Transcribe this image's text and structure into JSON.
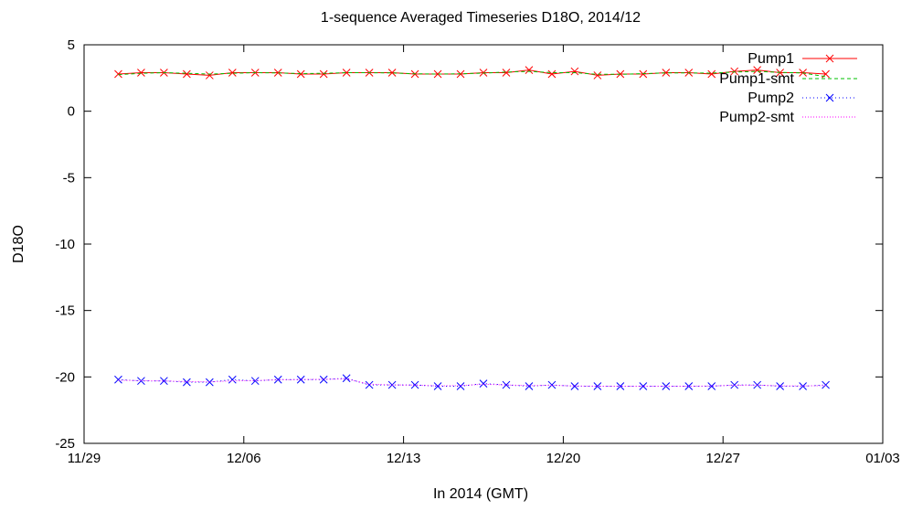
{
  "chart_data": {
    "type": "line",
    "title": "1-sequence Averaged Timeseries D18O, 2014/12",
    "xlabel": "In 2014 (GMT)",
    "ylabel": "D18O",
    "ylim": [
      -25,
      5
    ],
    "yticks": [
      5,
      0,
      -5,
      -10,
      -15,
      -20,
      -25
    ],
    "x_tick_labels": [
      "11/29",
      "12/06",
      "12/13",
      "12/20",
      "12/27",
      "01/03"
    ],
    "xlim": [
      "2014-11-29",
      "2015-01-03"
    ],
    "grid": false,
    "legend_position": "top-right",
    "x_dates": [
      "2014-11-30",
      "2014-12-01",
      "2014-12-02",
      "2014-12-03",
      "2014-12-04",
      "2014-12-05",
      "2014-12-06",
      "2014-12-07",
      "2014-12-08",
      "2014-12-09",
      "2014-12-10",
      "2014-12-11",
      "2014-12-12",
      "2014-12-13",
      "2014-12-14",
      "2014-12-15",
      "2014-12-16",
      "2014-12-17",
      "2014-12-18",
      "2014-12-19",
      "2014-12-20",
      "2014-12-21",
      "2014-12-22",
      "2014-12-23",
      "2014-12-24",
      "2014-12-25",
      "2014-12-26",
      "2014-12-27",
      "2014-12-28",
      "2014-12-29",
      "2014-12-30",
      "2014-12-31"
    ],
    "series": [
      {
        "name": "Pump1",
        "color": "#ff0000",
        "style": "points-line",
        "marker": "x",
        "values": [
          2.8,
          2.9,
          2.9,
          2.8,
          2.7,
          2.9,
          2.9,
          2.9,
          2.8,
          2.8,
          2.9,
          2.9,
          2.9,
          2.8,
          2.8,
          2.8,
          2.9,
          2.9,
          3.1,
          2.8,
          3.0,
          2.7,
          2.8,
          2.8,
          2.9,
          2.9,
          2.8,
          3.0,
          3.1,
          2.9,
          2.9,
          2.8
        ]
      },
      {
        "name": "Pump1-smt",
        "color": "#00c000",
        "style": "dashed",
        "values": [
          2.75,
          2.85,
          2.9,
          2.85,
          2.8,
          2.85,
          2.9,
          2.88,
          2.83,
          2.85,
          2.9,
          2.9,
          2.88,
          2.82,
          2.8,
          2.82,
          2.87,
          2.95,
          3.0,
          2.9,
          2.9,
          2.78,
          2.78,
          2.83,
          2.88,
          2.88,
          2.87,
          2.95,
          3.0,
          2.92,
          2.88,
          2.6
        ]
      },
      {
        "name": "Pump2",
        "color": "#0000ff",
        "style": "points-dotted",
        "marker": "x",
        "values": [
          -20.2,
          -20.3,
          -20.3,
          -20.4,
          -20.4,
          -20.2,
          -20.3,
          -20.2,
          -20.2,
          -20.2,
          -20.1,
          -20.6,
          -20.6,
          -20.6,
          -20.7,
          -20.7,
          -20.5,
          -20.6,
          -20.7,
          -20.6,
          -20.7,
          -20.7,
          -20.7,
          -20.7,
          -20.7,
          -20.7,
          -20.7,
          -20.6,
          -20.6,
          -20.7,
          -20.7,
          -20.6
        ]
      },
      {
        "name": "Pump2-smt",
        "color": "#ff00ff",
        "style": "dotted",
        "values": [
          -20.25,
          -20.28,
          -20.3,
          -20.35,
          -20.37,
          -20.3,
          -20.27,
          -20.22,
          -20.2,
          -20.18,
          -20.15,
          -20.55,
          -20.6,
          -20.62,
          -20.67,
          -20.65,
          -20.55,
          -20.6,
          -20.65,
          -20.63,
          -20.68,
          -20.7,
          -20.7,
          -20.7,
          -20.7,
          -20.7,
          -20.68,
          -20.63,
          -20.62,
          -20.67,
          -20.68,
          -20.65
        ]
      }
    ]
  }
}
